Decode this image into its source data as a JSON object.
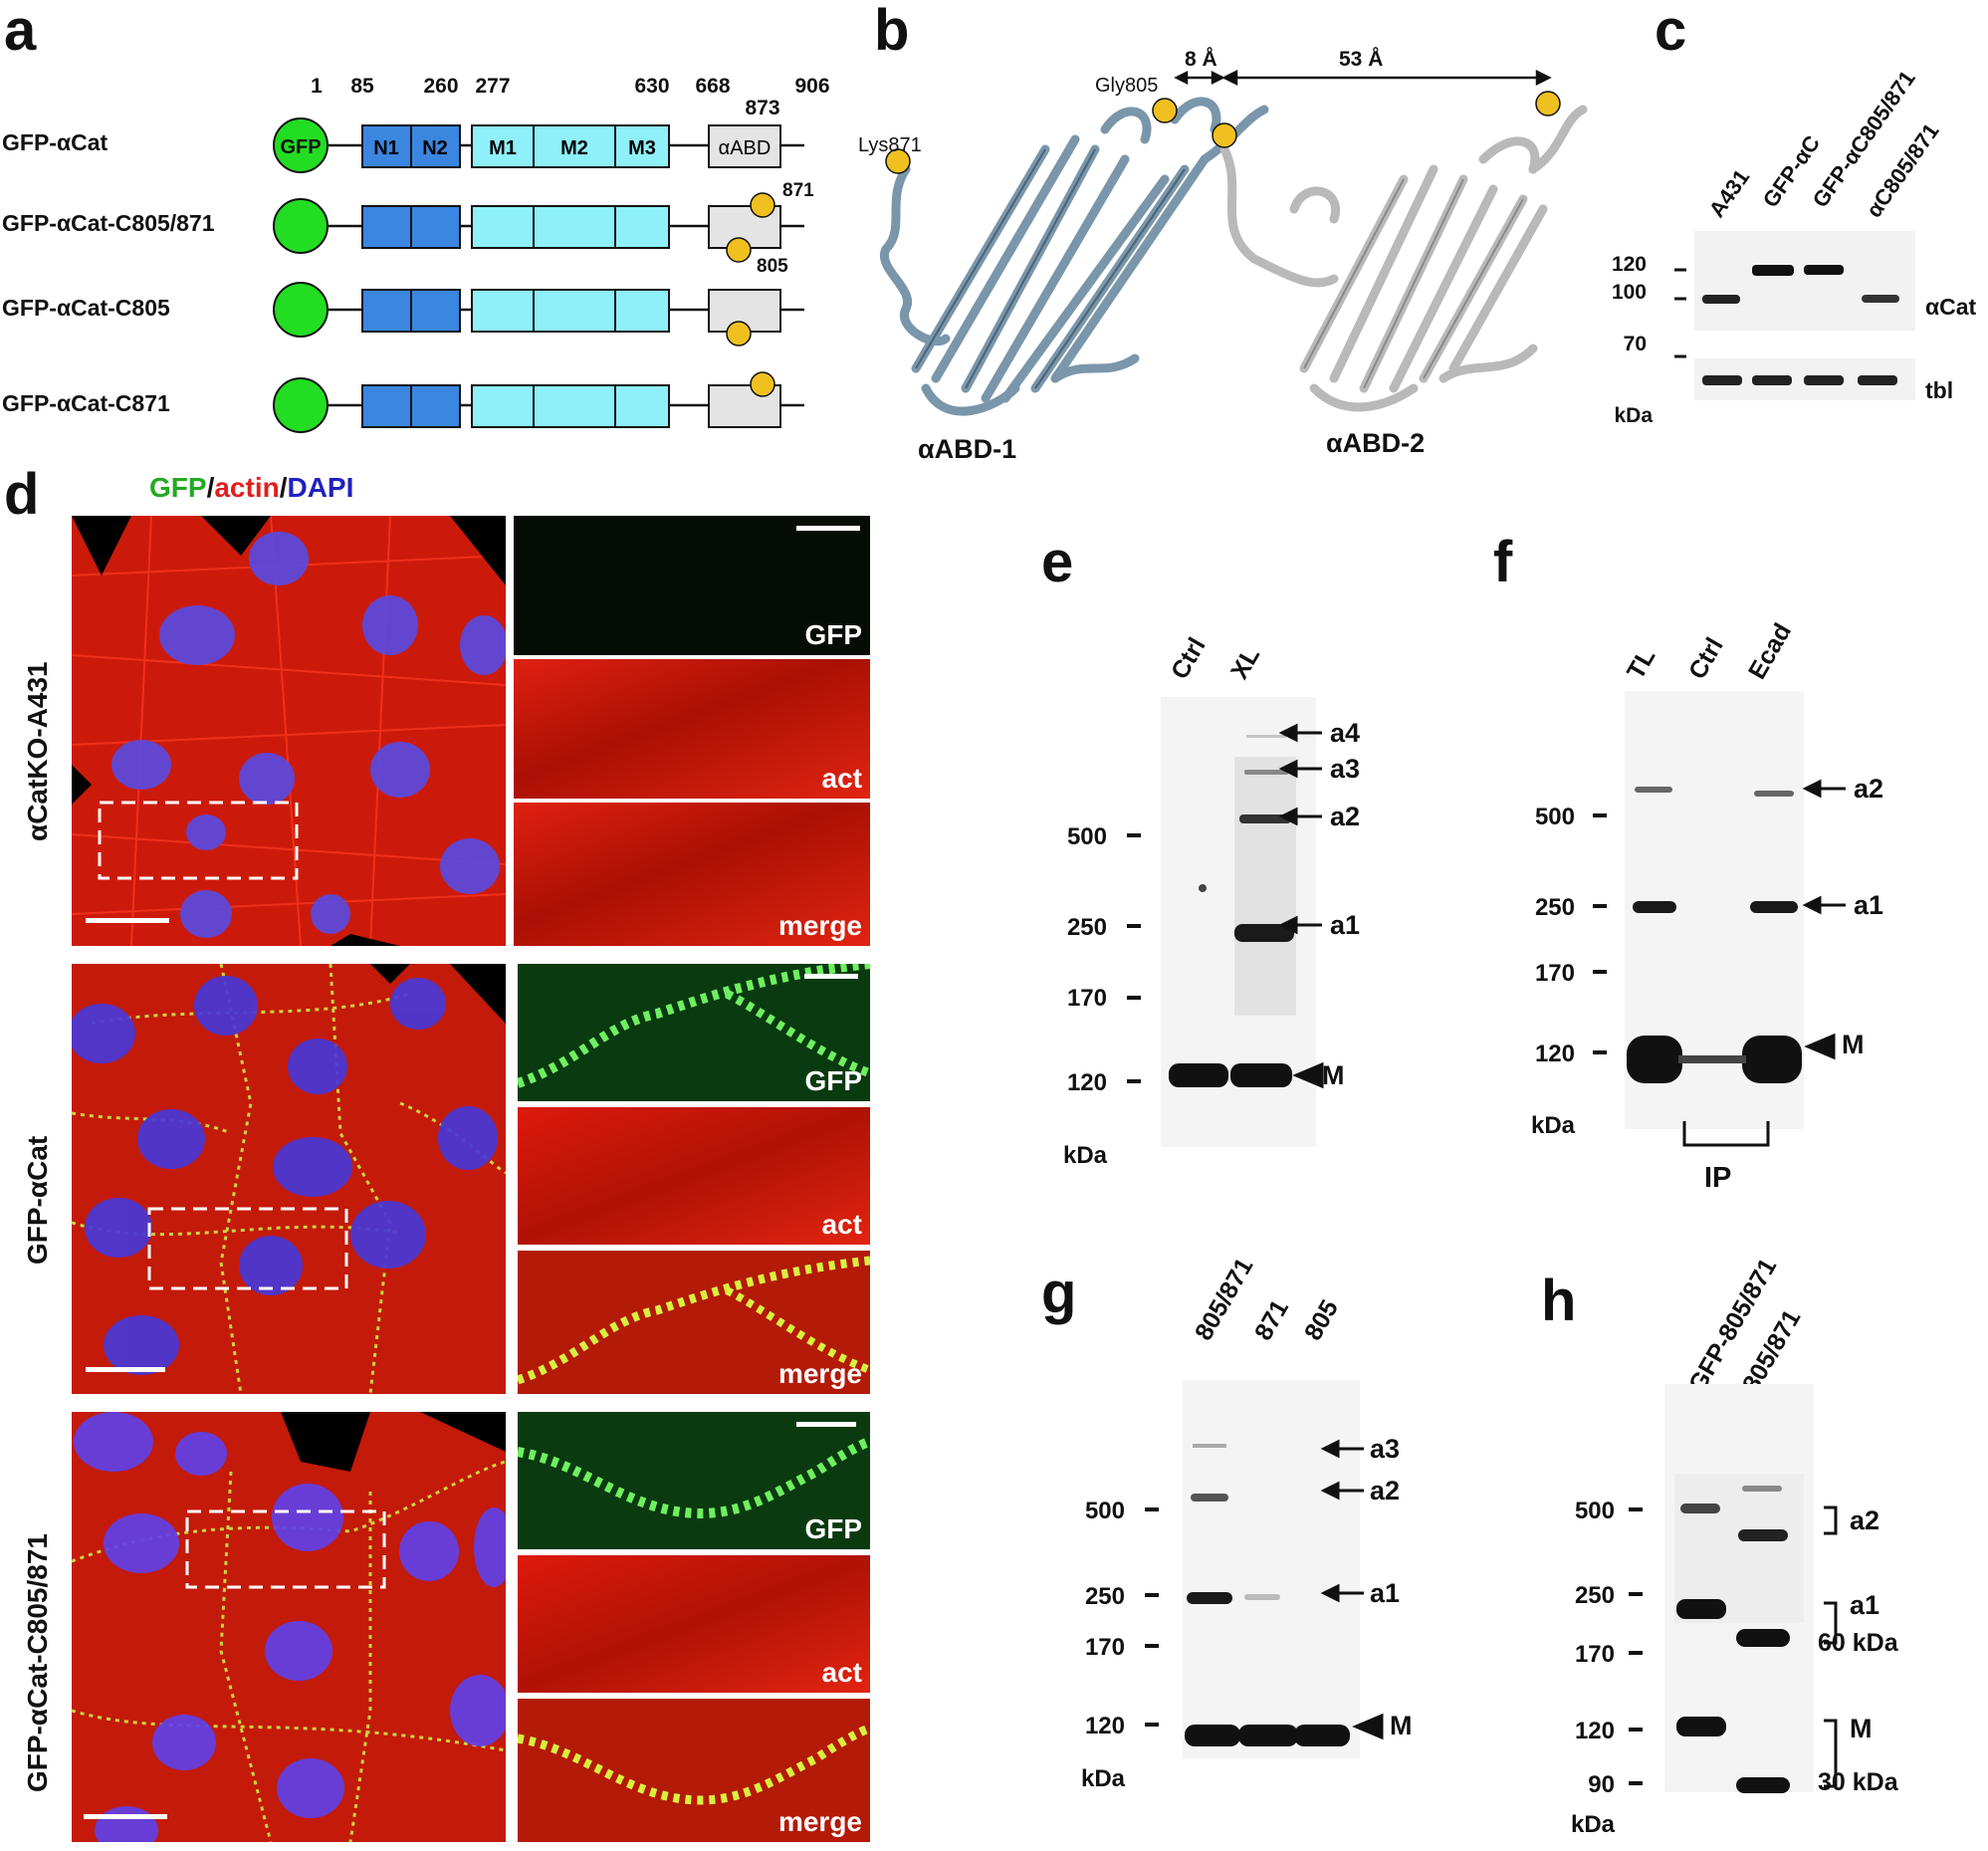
{
  "panel_labels": {
    "a": "a",
    "b": "b",
    "c": "c",
    "d": "d",
    "e": "e",
    "f": "f",
    "g": "g",
    "h": "h"
  },
  "panel_a": {
    "positions": [
      "1",
      "85",
      "260",
      "277",
      "630",
      "668",
      "906"
    ],
    "position_873": "873",
    "constructs": [
      "GFP-αCat",
      "GFP-αCat-C805/871",
      "GFP-αCat-C805",
      "GFP-αCat-C871"
    ],
    "domains": {
      "gfp": "GFP",
      "n1": "N1",
      "n2": "N2",
      "m1": "M1",
      "m2": "M2",
      "m3": "M3",
      "abd": "αABD"
    },
    "site_labels": [
      "871",
      "805"
    ],
    "colors": {
      "gfp": "#22dd22",
      "n": "#3a86e0",
      "m": "#8ef0f8",
      "abd": "#e4e4e4",
      "site": "#f0c020"
    }
  },
  "panel_b": {
    "labels": {
      "lys": "Lys871",
      "gly": "Gly805",
      "dist1": "8 Å",
      "dist2": "53 Å",
      "abd1": "αABD-1",
      "abd2": "αABD-2"
    },
    "colors": {
      "abd1": "#7a96aa",
      "abd2": "#b9b9b9"
    }
  },
  "panel_c": {
    "lanes": [
      "A431",
      "GFP-αC",
      "GFP-αC805/871",
      "αC805/871"
    ],
    "markers": [
      "120",
      "100",
      "70"
    ],
    "unit": "kDa",
    "band_labels": [
      "αCat",
      "tbl"
    ]
  },
  "panel_d": {
    "title": {
      "gfp": "GFP",
      "sep1": "/",
      "actin": "actin",
      "sep2": "/",
      "dapi": "DAPI"
    },
    "title_colors": {
      "gfp": "#22aa22",
      "actin": "#e02020",
      "dapi": "#2020c0"
    },
    "rows": [
      "αCatKO-A431",
      "GFP-αCat",
      "GFP-αCat-C805/871"
    ],
    "channels": [
      "GFP",
      "act",
      "merge"
    ]
  },
  "panel_e": {
    "lanes": [
      "Ctrl",
      "XL"
    ],
    "markers": [
      "500",
      "250",
      "170",
      "120"
    ],
    "unit": "kDa",
    "bands": [
      "a4",
      "a3",
      "a2",
      "a1"
    ],
    "monomer": "M"
  },
  "panel_f": {
    "lanes": [
      "TL",
      "Ctrl",
      "Ecad"
    ],
    "markers": [
      "500",
      "250",
      "170",
      "120"
    ],
    "unit": "kDa",
    "bands": [
      "a2",
      "a1"
    ],
    "monomer": "M",
    "ip": "IP"
  },
  "panel_g": {
    "lanes": [
      "805/871",
      "871",
      "805"
    ],
    "markers": [
      "500",
      "250",
      "170",
      "120"
    ],
    "unit": "kDa",
    "bands": [
      "a3",
      "a2",
      "a1"
    ],
    "monomer": "M"
  },
  "panel_h": {
    "lanes": [
      "GFP-805/871",
      "805/871"
    ],
    "markers": [
      "500",
      "250",
      "170",
      "120",
      "90"
    ],
    "unit": "kDa",
    "brackets": [
      "a2",
      "a1",
      "60 kDa",
      "M",
      "30 kDa"
    ]
  }
}
